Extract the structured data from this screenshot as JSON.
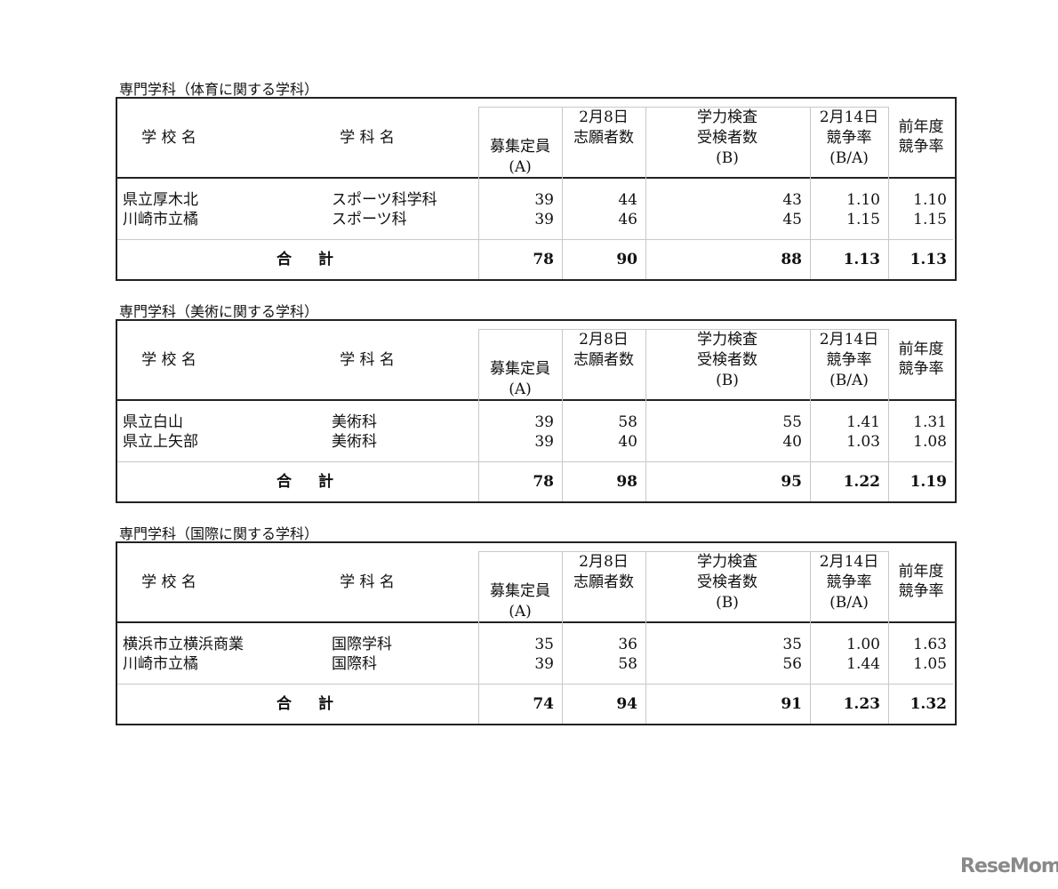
{
  "header_columns": {
    "school": "学 校 名",
    "department": "学 科 名",
    "capacity": [
      "募集定員",
      "(A)"
    ],
    "applicants": [
      "2月8日",
      "志願者数"
    ],
    "examinees": [
      "学力検査",
      "受検者数",
      "(B)"
    ],
    "ratio": [
      "2月14日",
      "競争率",
      "(B/A)"
    ],
    "prev_ratio": [
      "前年度",
      "競争率"
    ]
  },
  "total_label": [
    "合",
    "計"
  ],
  "tables": [
    {
      "title": "専門学科（体育に関する学科）",
      "rows": [
        {
          "school": "県立厚木北",
          "department": "スポーツ科学科",
          "capacity": "39",
          "applicants": "44",
          "examinees": "43",
          "ratio": "1.10",
          "prev_ratio": "1.10"
        },
        {
          "school": "川崎市立橘",
          "department": "スポーツ科",
          "capacity": "39",
          "applicants": "46",
          "examinees": "45",
          "ratio": "1.15",
          "prev_ratio": "1.15"
        }
      ],
      "total": {
        "capacity": "78",
        "applicants": "90",
        "examinees": "88",
        "ratio": "1.13",
        "prev_ratio": "1.13"
      }
    },
    {
      "title": "専門学科（美術に関する学科）",
      "rows": [
        {
          "school": "県立白山",
          "department": "美術科",
          "capacity": "39",
          "applicants": "58",
          "examinees": "55",
          "ratio": "1.41",
          "prev_ratio": "1.31"
        },
        {
          "school": "県立上矢部",
          "department": "美術科",
          "capacity": "39",
          "applicants": "40",
          "examinees": "40",
          "ratio": "1.03",
          "prev_ratio": "1.08"
        }
      ],
      "total": {
        "capacity": "78",
        "applicants": "98",
        "examinees": "95",
        "ratio": "1.22",
        "prev_ratio": "1.19"
      }
    },
    {
      "title": "専門学科（国際に関する学科）",
      "rows": [
        {
          "school": "横浜市立横浜商業",
          "department": "国際学科",
          "capacity": "35",
          "applicants": "36",
          "examinees": "35",
          "ratio": "1.00",
          "prev_ratio": "1.63"
        },
        {
          "school": "川崎市立橘",
          "department": "国際科",
          "capacity": "39",
          "applicants": "58",
          "examinees": "56",
          "ratio": "1.44",
          "prev_ratio": "1.05"
        }
      ],
      "total": {
        "capacity": "74",
        "applicants": "94",
        "examinees": "91",
        "ratio": "1.23",
        "prev_ratio": "1.32"
      }
    }
  ],
  "watermark": "ReseMom"
}
